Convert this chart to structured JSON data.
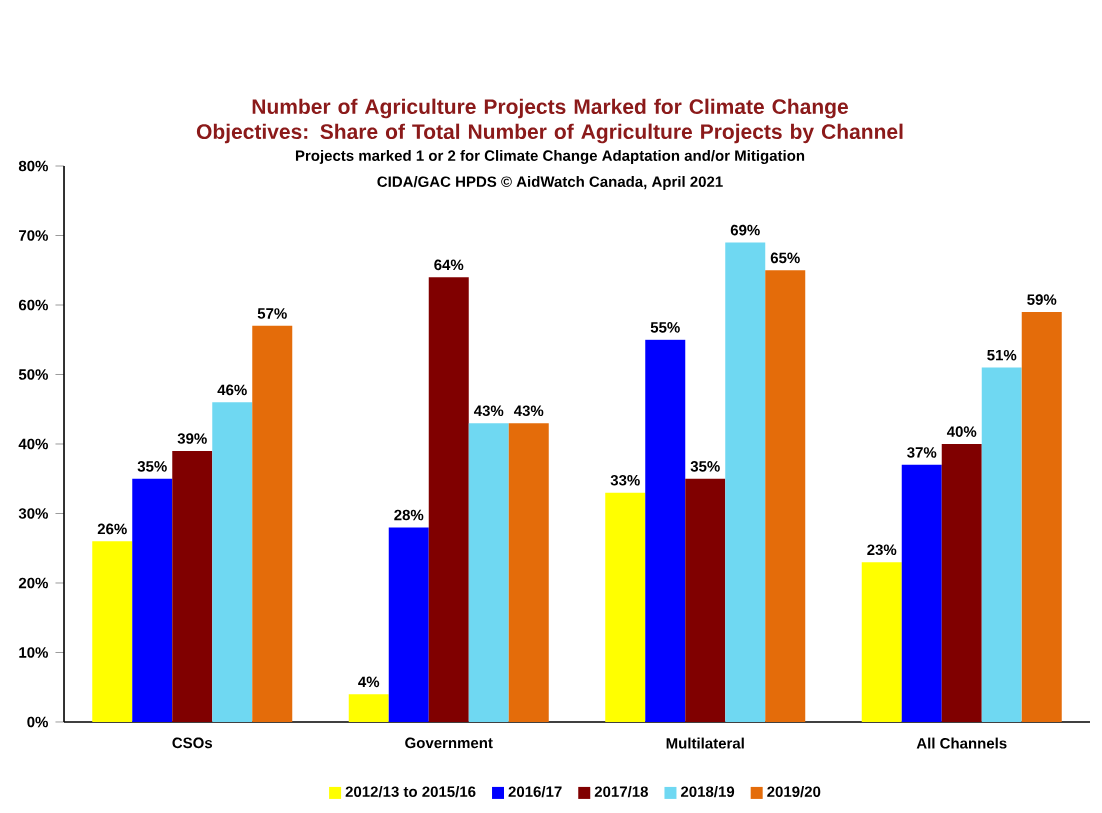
{
  "chart_data": {
    "type": "bar",
    "title": "Number of Agriculture Projects Marked for Climate Change Objectives: Share of Total Number of Agriculture Projects by Channel",
    "subtitle": "Projects marked 1 or 2 for Climate Change Adaptation and/or Mitigation",
    "annotations": [
      "CIDA/GAC HPDS     © AidWatch Canada, April 2021"
    ],
    "categories": [
      "CSOs",
      "Government",
      "Multilateral",
      "All Channels"
    ],
    "series": [
      {
        "name": "2012/13 to 2015/16",
        "color": "#ffff00",
        "values": [
          26,
          4,
          33,
          23
        ],
        "value_labels": [
          "26%",
          "4%",
          "33%",
          "23%"
        ]
      },
      {
        "name": "2016/17",
        "color": "#0000ff",
        "values": [
          35,
          28,
          55,
          37
        ],
        "value_labels": [
          "35%",
          "28%",
          "55%",
          "37%"
        ]
      },
      {
        "name": "2017/18",
        "color": "#800000",
        "values": [
          39,
          64,
          35,
          40
        ],
        "value_labels": [
          "39%",
          "64%",
          "35%",
          "40%"
        ]
      },
      {
        "name": "2018/19",
        "color": "#6fd8f2",
        "values": [
          46,
          43,
          69,
          51
        ],
        "value_labels": [
          "46%",
          "43%",
          "69%",
          "51%"
        ]
      },
      {
        "name": "2019/20",
        "color": "#e46c0a",
        "values": [
          57,
          43,
          65,
          59
        ],
        "value_labels": [
          "57%",
          "43%",
          "65%",
          "59%"
        ]
      }
    ],
    "ylim": [
      0,
      80
    ],
    "yticks": [
      {
        "value": 0,
        "label": "0%"
      },
      {
        "value": 10,
        "label": "10%"
      },
      {
        "value": 20,
        "label": "20%"
      },
      {
        "value": 30,
        "label": "30%"
      },
      {
        "value": 40,
        "label": "40%"
      },
      {
        "value": 50,
        "label": "50%"
      },
      {
        "value": 60,
        "label": "60%"
      },
      {
        "value": 70,
        "label": "70%"
      },
      {
        "value": 80,
        "label": "80%"
      }
    ],
    "legend": "bottom",
    "grid": false
  }
}
